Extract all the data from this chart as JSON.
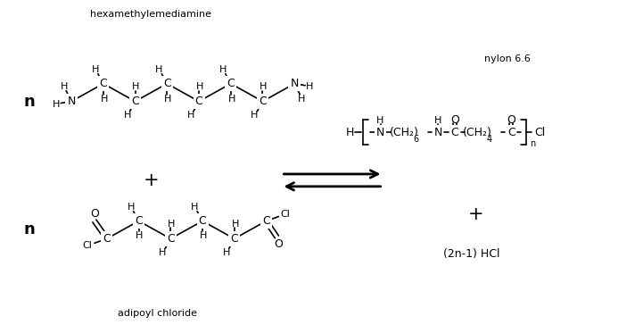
{
  "bg_color": "#ffffff",
  "text_color": "#000000",
  "figsize": [
    7.21,
    3.73
  ],
  "dpi": 100,
  "top_label": "hexamethylemediamine",
  "bottom_label": "adipoyl chloride",
  "nylon_label": "nylon 6.6",
  "hcl_label": "(2n-1) HCl",
  "n_label": "n"
}
